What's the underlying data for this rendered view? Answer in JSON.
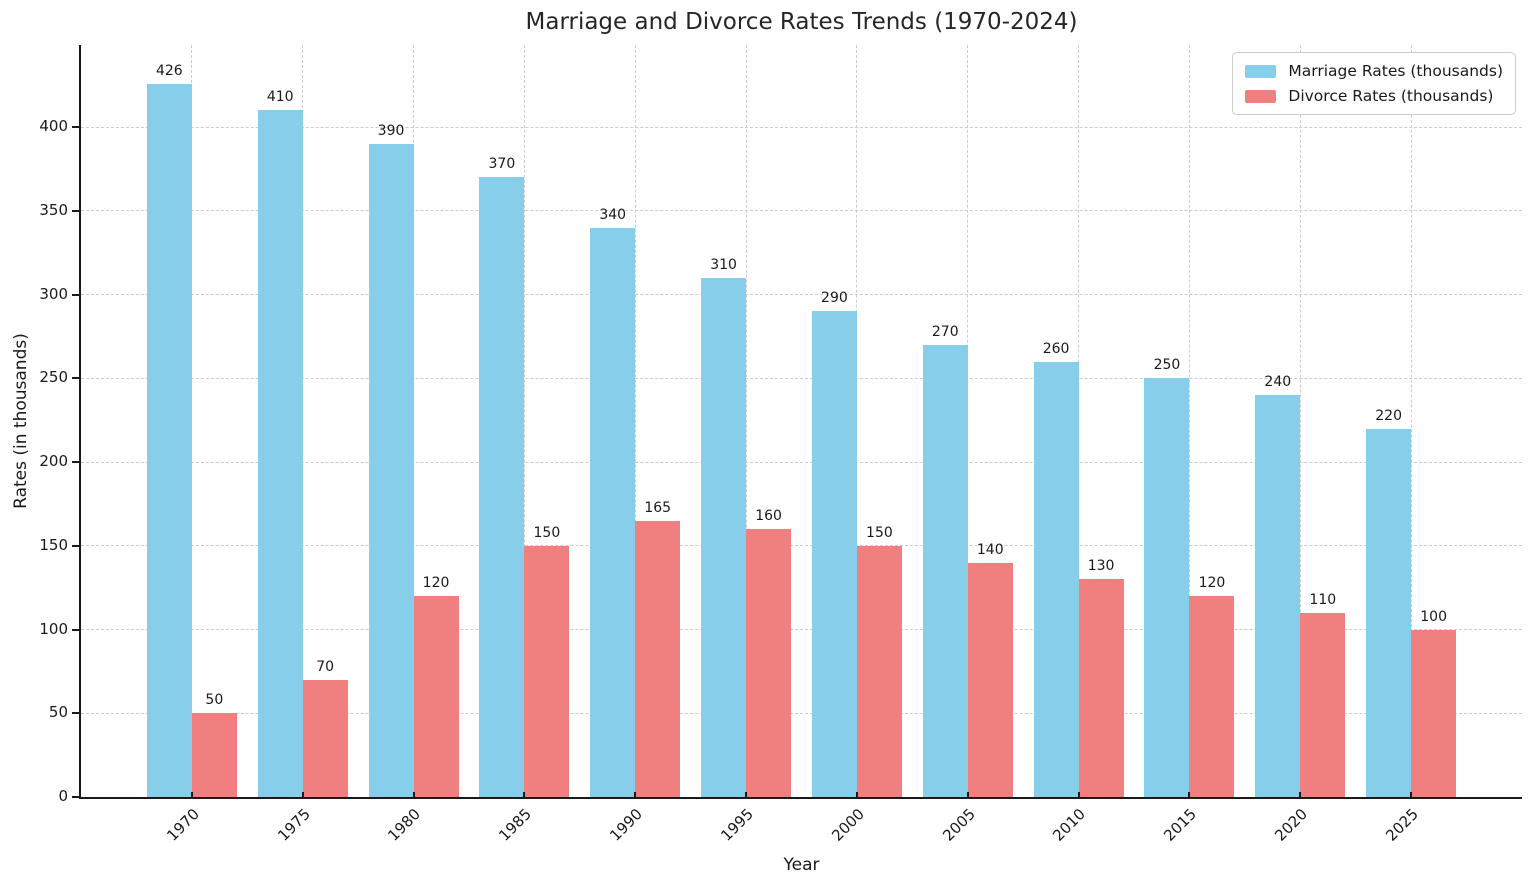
{
  "chart_data": {
    "type": "bar",
    "title": "Marriage and Divorce Rates Trends (1970-2024)",
    "xlabel": "Year",
    "ylabel": "Rates (in thousands)",
    "categories": [
      "1970",
      "1975",
      "1980",
      "1985",
      "1990",
      "1995",
      "2000",
      "2005",
      "2010",
      "2015",
      "2020",
      "2025"
    ],
    "series": [
      {
        "name": "Marriage Rates (thousands)",
        "color": "#87CEEB",
        "values": [
          426,
          410,
          390,
          370,
          340,
          310,
          290,
          270,
          260,
          250,
          240,
          220
        ]
      },
      {
        "name": "Divorce Rates (thousands)",
        "color": "#F08080",
        "values": [
          50,
          70,
          120,
          150,
          165,
          160,
          150,
          140,
          130,
          120,
          110,
          100
        ]
      }
    ],
    "yticks": [
      0,
      50,
      100,
      150,
      200,
      250,
      300,
      350,
      400
    ],
    "ylim": [
      0,
      449
    ],
    "grid": true,
    "grid_style": "dashed",
    "legend_position": "upper right",
    "bar_value_labels": true
  }
}
